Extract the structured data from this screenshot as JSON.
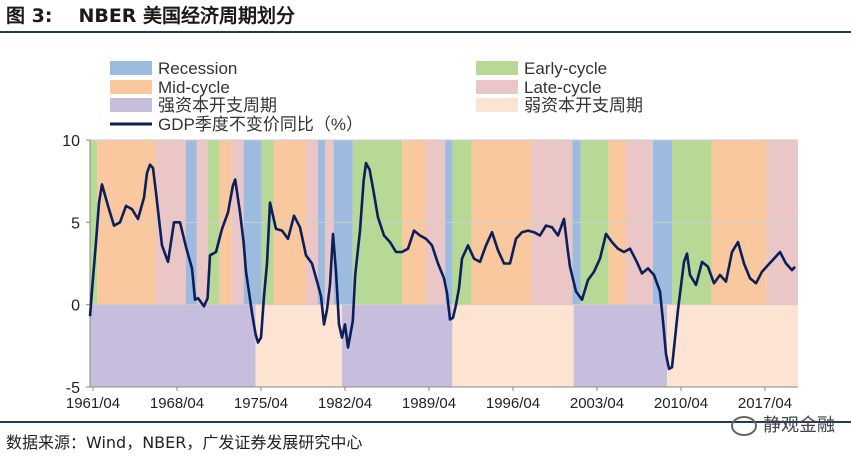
{
  "figure": {
    "label": "图 3:",
    "title": "NBER 美国经济周期划分",
    "source": "数据来源：Wind，NBER，广发证券发展研究中心",
    "watermark": "静观金融"
  },
  "colors": {
    "recession": "#9dbadf",
    "early": "#b8d896",
    "mid": "#f9c89e",
    "late": "#eac6c6",
    "strong": "#c7bddc",
    "weak": "#fde3d2",
    "gdp": "#0b1f5c",
    "axis": "#888888"
  },
  "chart_data": {
    "type": "area",
    "xlabel": "",
    "ylabel": "",
    "ylim": [
      -5,
      10
    ],
    "yticks": [
      -5,
      0,
      5,
      10
    ],
    "xlim": [
      1961.0,
      2020.0
    ],
    "xticks": [
      {
        "value": 1961.25,
        "label": "1961/04"
      },
      {
        "value": 1968.25,
        "label": "1968/04"
      },
      {
        "value": 1975.25,
        "label": "1975/04"
      },
      {
        "value": 1982.25,
        "label": "1982/04"
      },
      {
        "value": 1989.25,
        "label": "1989/04"
      },
      {
        "value": 1996.25,
        "label": "1996/04"
      },
      {
        "value": 2003.25,
        "label": "2003/04"
      },
      {
        "value": 2010.25,
        "label": "2010/04"
      },
      {
        "value": 2017.25,
        "label": "2017/04"
      }
    ],
    "legend": [
      {
        "key": "recession",
        "label": "Recession",
        "kind": "box"
      },
      {
        "key": "early",
        "label": "Early-cycle",
        "kind": "box"
      },
      {
        "key": "mid",
        "label": "Mid-cycle",
        "kind": "box"
      },
      {
        "key": "late",
        "label": "Late-cycle",
        "kind": "box"
      },
      {
        "key": "strong",
        "label": "强资本开支周期",
        "kind": "box"
      },
      {
        "key": "weak",
        "label": "弱资本开支周期",
        "kind": "box"
      },
      {
        "key": "gdp",
        "label": "GDP季度不变价同比（%）",
        "kind": "line"
      }
    ],
    "phases": [
      {
        "start": 1961.0,
        "end": 1961.6,
        "phase": "early"
      },
      {
        "start": 1961.6,
        "end": 1966.5,
        "phase": "mid"
      },
      {
        "start": 1966.5,
        "end": 1969.0,
        "phase": "late"
      },
      {
        "start": 1969.0,
        "end": 1969.9,
        "phase": "recession"
      },
      {
        "start": 1969.9,
        "end": 1970.8,
        "phase": "late"
      },
      {
        "start": 1970.8,
        "end": 1971.8,
        "phase": "early"
      },
      {
        "start": 1971.8,
        "end": 1972.8,
        "phase": "mid"
      },
      {
        "start": 1972.8,
        "end": 1973.8,
        "phase": "late"
      },
      {
        "start": 1973.8,
        "end": 1975.3,
        "phase": "recession"
      },
      {
        "start": 1975.3,
        "end": 1976.3,
        "phase": "early"
      },
      {
        "start": 1976.3,
        "end": 1979.0,
        "phase": "mid"
      },
      {
        "start": 1979.0,
        "end": 1980.0,
        "phase": "late"
      },
      {
        "start": 1980.0,
        "end": 1980.6,
        "phase": "recession"
      },
      {
        "start": 1980.6,
        "end": 1981.3,
        "phase": "late"
      },
      {
        "start": 1981.3,
        "end": 1982.9,
        "phase": "recession"
      },
      {
        "start": 1982.9,
        "end": 1987.0,
        "phase": "early"
      },
      {
        "start": 1987.0,
        "end": 1989.0,
        "phase": "mid"
      },
      {
        "start": 1989.0,
        "end": 1990.6,
        "phase": "late"
      },
      {
        "start": 1990.6,
        "end": 1991.2,
        "phase": "recession"
      },
      {
        "start": 1991.2,
        "end": 1992.8,
        "phase": "early"
      },
      {
        "start": 1992.8,
        "end": 1997.8,
        "phase": "mid"
      },
      {
        "start": 1997.8,
        "end": 2001.2,
        "phase": "late"
      },
      {
        "start": 2001.2,
        "end": 2001.9,
        "phase": "recession"
      },
      {
        "start": 2001.9,
        "end": 2004.2,
        "phase": "early"
      },
      {
        "start": 2004.2,
        "end": 2005.7,
        "phase": "mid"
      },
      {
        "start": 2005.7,
        "end": 2007.9,
        "phase": "late"
      },
      {
        "start": 2007.9,
        "end": 2009.5,
        "phase": "recession"
      },
      {
        "start": 2009.5,
        "end": 2012.8,
        "phase": "early"
      },
      {
        "start": 2012.8,
        "end": 2017.4,
        "phase": "mid"
      },
      {
        "start": 2017.4,
        "end": 2020.0,
        "phase": "late"
      }
    ],
    "capex": [
      {
        "start": 1961.0,
        "end": 1974.8,
        "type": "strong"
      },
      {
        "start": 1974.8,
        "end": 1982.0,
        "type": "weak"
      },
      {
        "start": 1982.0,
        "end": 1991.2,
        "type": "strong"
      },
      {
        "start": 1991.2,
        "end": 2001.3,
        "type": "weak"
      },
      {
        "start": 2001.3,
        "end": 2009.1,
        "type": "strong"
      },
      {
        "start": 2009.1,
        "end": 2020.0,
        "type": "weak"
      }
    ],
    "series": [
      {
        "name": "GDP季度不变价同比（%）",
        "points": [
          [
            1961.0,
            -0.7
          ],
          [
            1961.25,
            1.6
          ],
          [
            1961.5,
            3.8
          ],
          [
            1961.75,
            6.2
          ],
          [
            1962.0,
            7.3
          ],
          [
            1962.5,
            6.0
          ],
          [
            1963.0,
            4.8
          ],
          [
            1963.5,
            5.0
          ],
          [
            1964.0,
            6.0
          ],
          [
            1964.5,
            5.8
          ],
          [
            1965.0,
            5.2
          ],
          [
            1965.5,
            6.5
          ],
          [
            1965.75,
            8.0
          ],
          [
            1966.0,
            8.5
          ],
          [
            1966.25,
            8.3
          ],
          [
            1966.5,
            6.8
          ],
          [
            1967.0,
            3.6
          ],
          [
            1967.5,
            2.6
          ],
          [
            1968.0,
            5.0
          ],
          [
            1968.5,
            5.0
          ],
          [
            1969.0,
            3.5
          ],
          [
            1969.5,
            2.2
          ],
          [
            1969.75,
            0.3
          ],
          [
            1970.0,
            0.4
          ],
          [
            1970.5,
            -0.1
          ],
          [
            1970.8,
            0.4
          ],
          [
            1971.0,
            3.0
          ],
          [
            1971.5,
            3.2
          ],
          [
            1972.0,
            4.6
          ],
          [
            1972.5,
            5.6
          ],
          [
            1972.9,
            7.2
          ],
          [
            1973.1,
            7.6
          ],
          [
            1973.5,
            5.6
          ],
          [
            1973.8,
            3.8
          ],
          [
            1974.0,
            2.0
          ],
          [
            1974.5,
            -0.5
          ],
          [
            1974.8,
            -1.8
          ],
          [
            1975.0,
            -2.3
          ],
          [
            1975.25,
            -2.0
          ],
          [
            1975.5,
            0.5
          ],
          [
            1975.75,
            2.5
          ],
          [
            1976.0,
            6.2
          ],
          [
            1976.5,
            4.6
          ],
          [
            1977.0,
            4.5
          ],
          [
            1977.5,
            4.0
          ],
          [
            1978.0,
            5.4
          ],
          [
            1978.5,
            4.7
          ],
          [
            1979.0,
            3.0
          ],
          [
            1979.5,
            2.5
          ],
          [
            1980.0,
            1.2
          ],
          [
            1980.25,
            0.5
          ],
          [
            1980.5,
            -1.2
          ],
          [
            1980.75,
            -0.3
          ],
          [
            1981.0,
            1.2
          ],
          [
            1981.25,
            4.3
          ],
          [
            1981.5,
            2.0
          ],
          [
            1981.75,
            -1.2
          ],
          [
            1982.0,
            -2.0
          ],
          [
            1982.25,
            -1.2
          ],
          [
            1982.5,
            -2.6
          ],
          [
            1982.9,
            -1.0
          ],
          [
            1983.1,
            1.8
          ],
          [
            1983.5,
            4.5
          ],
          [
            1983.8,
            7.5
          ],
          [
            1984.0,
            8.6
          ],
          [
            1984.3,
            8.2
          ],
          [
            1984.6,
            7.0
          ],
          [
            1985.0,
            5.3
          ],
          [
            1985.5,
            4.2
          ],
          [
            1986.0,
            3.8
          ],
          [
            1986.5,
            3.2
          ],
          [
            1987.0,
            3.2
          ],
          [
            1987.5,
            3.4
          ],
          [
            1988.0,
            4.5
          ],
          [
            1988.5,
            4.2
          ],
          [
            1989.0,
            4.0
          ],
          [
            1989.5,
            3.6
          ],
          [
            1990.0,
            2.5
          ],
          [
            1990.5,
            1.6
          ],
          [
            1990.75,
            0.7
          ],
          [
            1991.0,
            -0.9
          ],
          [
            1991.25,
            -0.8
          ],
          [
            1991.5,
            0.0
          ],
          [
            1991.75,
            1.0
          ],
          [
            1992.0,
            2.8
          ],
          [
            1992.5,
            3.6
          ],
          [
            1993.0,
            2.8
          ],
          [
            1993.5,
            2.6
          ],
          [
            1994.0,
            3.6
          ],
          [
            1994.5,
            4.4
          ],
          [
            1995.0,
            3.3
          ],
          [
            1995.5,
            2.5
          ],
          [
            1996.0,
            2.5
          ],
          [
            1996.5,
            4.0
          ],
          [
            1997.0,
            4.4
          ],
          [
            1997.5,
            4.5
          ],
          [
            1998.0,
            4.4
          ],
          [
            1998.5,
            4.2
          ],
          [
            1999.0,
            4.8
          ],
          [
            1999.5,
            4.7
          ],
          [
            2000.0,
            4.2
          ],
          [
            2000.5,
            5.2
          ],
          [
            2000.8,
            3.4
          ],
          [
            2001.0,
            2.3
          ],
          [
            2001.5,
            0.8
          ],
          [
            2002.0,
            0.3
          ],
          [
            2002.5,
            1.5
          ],
          [
            2003.0,
            2.0
          ],
          [
            2003.5,
            2.8
          ],
          [
            2004.0,
            4.3
          ],
          [
            2004.5,
            3.8
          ],
          [
            2005.0,
            3.4
          ],
          [
            2005.5,
            3.2
          ],
          [
            2006.0,
            3.4
          ],
          [
            2006.5,
            2.7
          ],
          [
            2007.0,
            1.9
          ],
          [
            2007.5,
            2.2
          ],
          [
            2008.0,
            1.8
          ],
          [
            2008.5,
            0.8
          ],
          [
            2008.75,
            -1.0
          ],
          [
            2009.0,
            -3.0
          ],
          [
            2009.25,
            -3.9
          ],
          [
            2009.5,
            -3.8
          ],
          [
            2010.0,
            -0.3
          ],
          [
            2010.5,
            2.6
          ],
          [
            2010.75,
            3.1
          ],
          [
            2011.0,
            1.8
          ],
          [
            2011.5,
            1.2
          ],
          [
            2012.0,
            2.6
          ],
          [
            2012.5,
            2.3
          ],
          [
            2013.0,
            1.3
          ],
          [
            2013.5,
            1.8
          ],
          [
            2014.0,
            1.4
          ],
          [
            2014.5,
            3.2
          ],
          [
            2015.0,
            3.8
          ],
          [
            2015.5,
            2.5
          ],
          [
            2016.0,
            1.6
          ],
          [
            2016.5,
            1.3
          ],
          [
            2017.0,
            2.0
          ],
          [
            2017.5,
            2.4
          ],
          [
            2018.0,
            2.8
          ],
          [
            2018.5,
            3.2
          ],
          [
            2019.0,
            2.5
          ],
          [
            2019.5,
            2.1
          ],
          [
            2019.75,
            2.3
          ]
        ]
      }
    ]
  }
}
